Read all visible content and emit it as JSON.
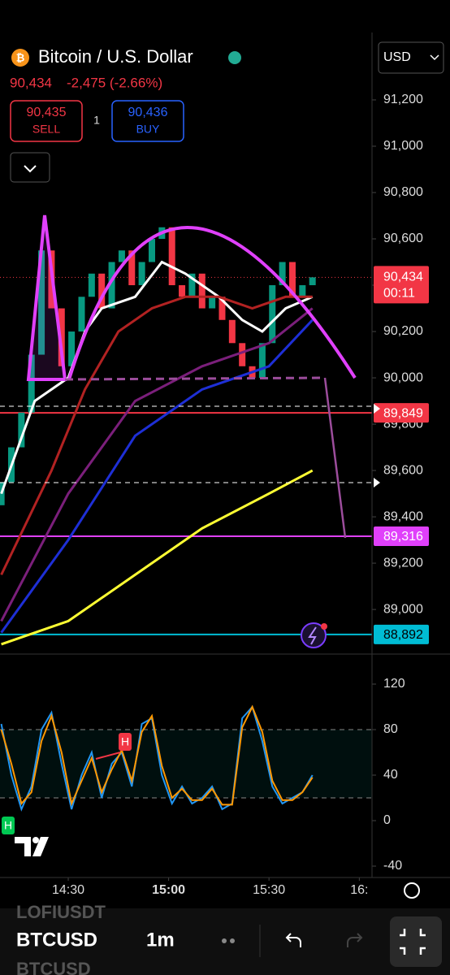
{
  "header": {
    "title": "Bitcoin / U.S. Dollar",
    "price": "90,434",
    "change": "-2,475 (-2.66%)",
    "sell_price": "90,435",
    "sell": "SELL",
    "quantity": "1",
    "buy_price": "90,436",
    "buy": "BUY",
    "currency": "USD"
  },
  "chart_data": [
    {
      "type": "candlestick",
      "x": [
        -20,
        -17,
        -14,
        -11,
        -8,
        -5,
        -2,
        1,
        4,
        7,
        10,
        13,
        16,
        19,
        22,
        25,
        28,
        31,
        34,
        37,
        40,
        43,
        46,
        49,
        52,
        55,
        58,
        61,
        64,
        67,
        70,
        73
      ],
      "open": [
        89450,
        89550,
        89700,
        89850,
        90100,
        90550,
        90300,
        90050,
        90200,
        90350,
        90450,
        90300,
        90500,
        90550,
        90400,
        90500,
        90600,
        90650,
        90400,
        90350,
        90450,
        90300,
        90350,
        90250,
        90150,
        90050,
        90000,
        90150,
        90400,
        90500,
        90350,
        90400
      ],
      "close": [
        89550,
        89700,
        89850,
        90100,
        90550,
        90300,
        90050,
        90200,
        90350,
        90450,
        90300,
        90500,
        90550,
        90400,
        90500,
        90600,
        90650,
        90400,
        90350,
        90450,
        90300,
        90350,
        90250,
        90150,
        90050,
        90000,
        90150,
        90400,
        90500,
        90350,
        90400,
        90434
      ],
      "up_color": "#089981",
      "down_color": "#f23645",
      "overlays": [
        {
          "color": "#ffffff",
          "x": [
            -20,
            -10,
            0,
            5,
            10,
            20,
            28,
            35,
            45,
            52,
            58,
            65,
            73
          ],
          "values": [
            89500,
            89900,
            90000,
            90200,
            90300,
            90350,
            90500,
            90450,
            90350,
            90250,
            90200,
            90300,
            90350
          ]
        },
        {
          "color": "#b22222",
          "x": [
            -20,
            -5,
            5,
            15,
            25,
            35,
            45,
            55,
            65,
            73
          ],
          "values": [
            89150,
            89600,
            89950,
            90200,
            90300,
            90350,
            90350,
            90300,
            90350,
            90350
          ]
        },
        {
          "color": "#7b1f7b",
          "x": [
            -20,
            0,
            20,
            40,
            60,
            73
          ],
          "values": [
            88950,
            89500,
            89900,
            90050,
            90150,
            90300
          ]
        },
        {
          "color": "#1e2fd6",
          "x": [
            -20,
            0,
            20,
            40,
            60,
            73
          ],
          "values": [
            88900,
            89300,
            89750,
            89950,
            90050,
            90250
          ]
        },
        {
          "color": "#ffff33",
          "x": [
            -20,
            0,
            20,
            40,
            60,
            73
          ],
          "values": [
            88850,
            88950,
            89150,
            89350,
            89500,
            89600
          ]
        }
      ],
      "levels": [
        {
          "value": 89849,
          "label": "89,849",
          "color": "#f23645"
        },
        {
          "value": 89316,
          "label": "89,316",
          "color": "#e040fb"
        },
        {
          "value": 88892,
          "label": "88,892",
          "color": "#00bcd4"
        }
      ],
      "last": {
        "value": 90434,
        "label": "90,434",
        "countdown": "00:11",
        "color": "#f23645"
      },
      "xlim": [
        -20.4,
        90.8
      ],
      "xticks": [
        {
          "value": 0,
          "label": "14:30"
        },
        {
          "value": 30,
          "label": "15:00"
        },
        {
          "value": 60,
          "label": "15:30"
        },
        {
          "value": 87,
          "label": "16:"
        }
      ],
      "ylim": [
        88825,
        91491
      ],
      "yticks": [
        {
          "value": 91200,
          "label": "91,200"
        },
        {
          "value": 91000,
          "label": "91,000"
        },
        {
          "value": 90800,
          "label": "90,800"
        },
        {
          "value": 90600,
          "label": "90,600"
        },
        {
          "value": 90400,
          "label": "90,400"
        },
        {
          "value": 90200,
          "label": "90,200"
        },
        {
          "value": 90000,
          "label": "90,000"
        },
        {
          "value": 89800,
          "label": "89,800"
        },
        {
          "value": 89600,
          "label": "89,600"
        },
        {
          "value": 89400,
          "label": "89,400"
        },
        {
          "value": 89200,
          "label": "89,200"
        },
        {
          "value": 89000,
          "label": "89,000"
        }
      ]
    },
    {
      "type": "line",
      "series": [
        {
          "color": "#2196f3",
          "x": [
            -20,
            -17,
            -14,
            -11,
            -8,
            -5,
            -2,
            1,
            4,
            7,
            10,
            13,
            16,
            19,
            22,
            25,
            28,
            31,
            34,
            37,
            40,
            43,
            46,
            49,
            52,
            55,
            58,
            61,
            64,
            67,
            70,
            73
          ],
          "values": [
            85,
            40,
            10,
            30,
            80,
            95,
            50,
            10,
            40,
            60,
            20,
            50,
            60,
            30,
            85,
            90,
            40,
            15,
            30,
            15,
            20,
            30,
            10,
            15,
            90,
            100,
            70,
            30,
            15,
            20,
            25,
            40
          ]
        },
        {
          "color": "#ff9800",
          "x": [
            -20,
            -17,
            -14,
            -11,
            -8,
            -5,
            -2,
            1,
            4,
            7,
            10,
            13,
            16,
            19,
            22,
            25,
            28,
            31,
            34,
            37,
            40,
            43,
            46,
            49,
            52,
            55,
            58,
            61,
            64,
            67,
            70,
            73
          ],
          "values": [
            80,
            50,
            15,
            25,
            70,
            92,
            60,
            15,
            35,
            55,
            25,
            45,
            62,
            35,
            78,
            92,
            48,
            20,
            28,
            18,
            18,
            28,
            14,
            14,
            82,
            100,
            78,
            35,
            18,
            18,
            25,
            38
          ]
        }
      ],
      "band": [
        20,
        80
      ],
      "marker_labels": [
        "H",
        "H"
      ],
      "xlim": [
        -20.4,
        90.8
      ],
      "ylim": [
        -50,
        135.7
      ],
      "yticks": [
        120,
        80,
        40,
        0,
        -40
      ]
    }
  ],
  "footer": {
    "prev_symbol": "LOFIUSDT",
    "symbol": "BTCUSD",
    "interval": "1m",
    "next_symbol": "BTCUSD"
  }
}
